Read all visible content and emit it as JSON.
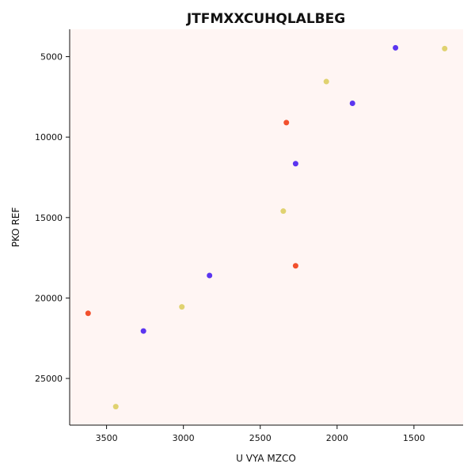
{
  "chart_data": {
    "type": "scatter",
    "title": "JTFMXXCUHQLALBEG",
    "xlabel": "U VYA MZCO",
    "ylabel": "PKO REF",
    "xlim": [
      3740,
      1180
    ],
    "ylim": [
      3300,
      27900
    ],
    "x_inverted": true,
    "y_inverted": true,
    "x_ticks": [
      3500,
      3000,
      2500,
      2000,
      1500
    ],
    "y_ticks": [
      5000,
      10000,
      15000,
      20000,
      25000
    ],
    "grid": false,
    "plot_background": "#fff5f3",
    "series": [
      {
        "color": "#5b35f0",
        "points": [
          {
            "x": 1620,
            "y": 4450
          },
          {
            "x": 1900,
            "y": 7900
          },
          {
            "x": 2270,
            "y": 11650
          },
          {
            "x": 2830,
            "y": 18600
          },
          {
            "x": 3260,
            "y": 22050
          }
        ]
      },
      {
        "color": "#e0d270",
        "points": [
          {
            "x": 1300,
            "y": 4500
          },
          {
            "x": 2070,
            "y": 6550
          },
          {
            "x": 2350,
            "y": 14600
          },
          {
            "x": 3010,
            "y": 20550
          },
          {
            "x": 3440,
            "y": 26750
          }
        ]
      },
      {
        "color": "#f2502d",
        "points": [
          {
            "x": 2330,
            "y": 9100
          },
          {
            "x": 2270,
            "y": 18000
          },
          {
            "x": 3620,
            "y": 20950
          }
        ]
      }
    ]
  }
}
